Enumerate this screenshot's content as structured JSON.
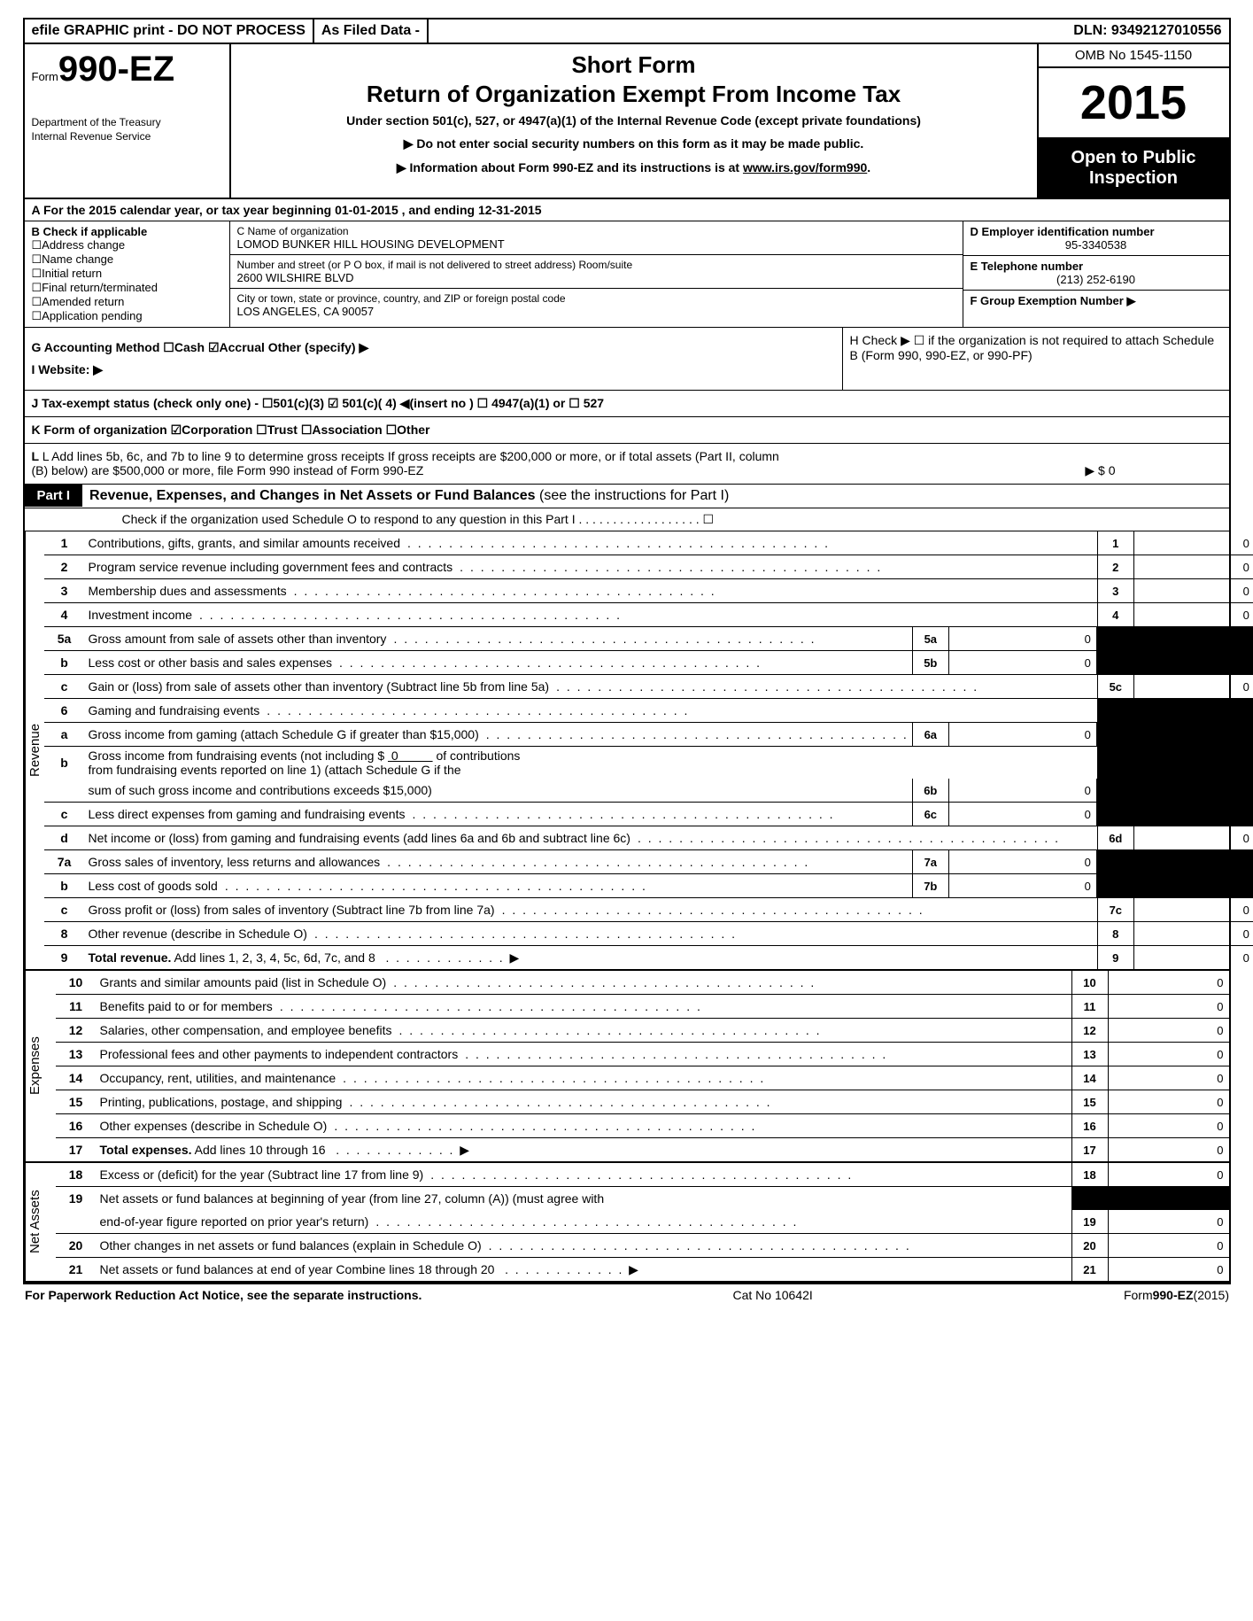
{
  "top": {
    "efile": "efile GRAPHIC print - DO NOT PROCESS",
    "asFiled": "As Filed Data -",
    "dln": "DLN: 93492127010556"
  },
  "header": {
    "formPrefix": "Form",
    "formNo": "990-EZ",
    "dept1": "Department of the Treasury",
    "dept2": "Internal Revenue Service",
    "title1": "Short Form",
    "title2": "Return of Organization Exempt From Income Tax",
    "sub": "Under section 501(c), 527, or 4947(a)(1) of the Internal Revenue Code (except private foundations)",
    "warn1": "▶ Do not enter social security numbers on this form as it may be made public.",
    "warn2": "▶ Information about Form 990-EZ and its instructions is at ",
    "irslink": "www.irs.gov/form990",
    "period": ".",
    "omb": "OMB No  1545-1150",
    "year": "2015",
    "open": "Open to Public Inspection"
  },
  "rowA": "A  For the 2015 calendar year, or tax year beginning 01-01-2015             , and ending 12-31-2015",
  "colB": {
    "hd": "B  Check if applicable",
    "items": [
      "Address change",
      "Name change",
      "Initial return",
      "Final return/terminated",
      "Amended return",
      "Application pending"
    ]
  },
  "colC": {
    "nameLbl": "C Name of organization",
    "name": "LOMOD BUNKER HILL HOUSING DEVELOPMENT",
    "addrLbl": "Number and street (or P  O  box, if mail is not delivered to street address) Room/suite",
    "addr": "2600 WILSHIRE BLVD",
    "cityLbl": "City or town, state or province, country, and ZIP or foreign postal code",
    "city": "LOS ANGELES, CA  90057"
  },
  "colDE": {
    "dLbl": "D Employer identification number",
    "ein": "95-3340538",
    "eLbl": "E Telephone number",
    "phone": "(213) 252-6190",
    "fLbl": "F Group Exemption Number  ▶"
  },
  "rowG": "G Accounting Method   ☐Cash  ☑Accrual   Other (specify) ▶",
  "rowI": "I Website: ▶",
  "rowH": "H   Check ▶ ☐ if the organization is not required to attach Schedule B (Form 990, 990-EZ, or 990-PF)",
  "rowJ": "J Tax-exempt status (check only one) - ☐501(c)(3) ☑ 501(c)( 4) ◀(insert no ) ☐ 4947(a)(1) or ☐ 527",
  "rowK": "K Form of organization   ☑Corporation  ☐Trust  ☐Association  ☐Other",
  "rowL1": "L Add lines 5b, 6c, and 7b to line 9 to determine gross receipts  If gross receipts are $200,000 or more, or if total assets (Part II, column",
  "rowL2": "(B) below) are $500,000 or more, file Form 990 instead of Form 990-EZ",
  "rowL3": "▶ $ 0",
  "part1": {
    "tag": "Part I",
    "title": "Revenue, Expenses, and Changes in Net Assets or Fund Balances",
    "sub": " (see the instructions for Part I)",
    "check": "Check if the organization used Schedule O to respond to any question in this Part I  .  .  .  .  .  .  .  .  .  .  .  .  .  .  .  .  .  .  ☐"
  },
  "revenue": [
    {
      "no": "1",
      "desc": "Contributions, gifts, grants, and similar amounts received",
      "rno": "1",
      "rval": "0"
    },
    {
      "no": "2",
      "desc": "Program service revenue including government fees and contracts",
      "rno": "2",
      "rval": "0"
    },
    {
      "no": "3",
      "desc": "Membership dues and assessments",
      "rno": "3",
      "rval": "0"
    },
    {
      "no": "4",
      "desc": "Investment income",
      "rno": "4",
      "rval": "0"
    },
    {
      "no": "5a",
      "desc": "Gross amount from sale of assets other than inventory",
      "subno": "5a",
      "subval": "0",
      "shade": true
    },
    {
      "no": "b",
      "desc": "Less  cost or other basis and sales expenses",
      "subno": "5b",
      "subval": "0",
      "shade": true
    },
    {
      "no": "c",
      "desc": "Gain or (loss) from sale of assets other than inventory (Subtract line 5b from line 5a)",
      "rno": "5c",
      "rval": "0"
    },
    {
      "no": "6",
      "desc": "Gaming and fundraising events",
      "shade": true,
      "noval": true
    },
    {
      "no": "a",
      "desc": "Gross income from gaming (attach Schedule G if greater than $15,000)",
      "subno": "6a",
      "subval": "0",
      "shade": true
    },
    {
      "no": "b",
      "desc": "Gross income from fundraising events (not including $  0              of contributions from fundraising events reported on line 1) (attach Schedule G if the sum of such gross income and contributions exceeds $15,000)",
      "subno": "6b",
      "subval": "0",
      "shade": true,
      "wrap": true
    },
    {
      "no": "c",
      "desc": "Less  direct expenses from gaming and fundraising events",
      "subno": "6c",
      "subval": "0",
      "shade": true
    },
    {
      "no": "d",
      "desc": "Net income or (loss) from gaming and fundraising events (add lines 6a and 6b and subtract line 6c)",
      "rno": "6d",
      "rval": "0"
    },
    {
      "no": "7a",
      "desc": "Gross sales of inventory, less returns and allowances",
      "subno": "7a",
      "subval": "0",
      "shade": true
    },
    {
      "no": "b",
      "desc": "Less  cost of goods sold",
      "subno": "7b",
      "subval": "0",
      "shade": true
    },
    {
      "no": "c",
      "desc": "Gross profit or (loss) from sales of inventory (Subtract line 7b from line 7a)",
      "rno": "7c",
      "rval": "0"
    },
    {
      "no": "8",
      "desc": "Other revenue (describe in Schedule O)",
      "rno": "8",
      "rval": "0"
    },
    {
      "no": "9",
      "desc": "Total revenue. Add lines 1, 2, 3, 4, 5c, 6d, 7c, and 8",
      "rno": "9",
      "rval": "0",
      "bold": true,
      "arrow": true
    }
  ],
  "expenses": [
    {
      "no": "10",
      "desc": "Grants and similar amounts paid (list in Schedule O)",
      "rno": "10",
      "rval": "0"
    },
    {
      "no": "11",
      "desc": "Benefits paid to or for members",
      "rno": "11",
      "rval": "0"
    },
    {
      "no": "12",
      "desc": "Salaries, other compensation, and employee benefits",
      "rno": "12",
      "rval": "0"
    },
    {
      "no": "13",
      "desc": "Professional fees and other payments to independent contractors",
      "rno": "13",
      "rval": "0"
    },
    {
      "no": "14",
      "desc": "Occupancy, rent, utilities, and maintenance",
      "rno": "14",
      "rval": "0"
    },
    {
      "no": "15",
      "desc": "Printing, publications, postage, and shipping",
      "rno": "15",
      "rval": "0"
    },
    {
      "no": "16",
      "desc": "Other expenses (describe in Schedule O)",
      "rno": "16",
      "rval": "0"
    },
    {
      "no": "17",
      "desc": "Total expenses. Add lines 10 through 16",
      "rno": "17",
      "rval": "0",
      "bold": true,
      "arrow": true
    }
  ],
  "netassets": [
    {
      "no": "18",
      "desc": "Excess or (deficit) for the year (Subtract line 17 from line 9)",
      "rno": "18",
      "rval": "0"
    },
    {
      "no": "19",
      "desc": "Net assets or fund balances at beginning of year (from line 27, column (A)) (must agree with end-of-year figure reported on prior year's return)",
      "rno": "19",
      "rval": "0",
      "wrap": true,
      "shadeTop": true
    },
    {
      "no": "20",
      "desc": "Other changes in net assets or fund balances (explain in Schedule O)",
      "rno": "20",
      "rval": "0"
    },
    {
      "no": "21",
      "desc": "Net assets or fund balances at end of year  Combine lines 18 through 20",
      "rno": "21",
      "rval": "0",
      "arrow": true
    }
  ],
  "footer": {
    "l": "For Paperwork Reduction Act Notice, see the separate instructions.",
    "c": "Cat No  10642I",
    "r": "Form 990-EZ (2015)"
  },
  "labels": {
    "revenue": "Revenue",
    "expenses": "Expenses",
    "netassets": "Net Assets"
  }
}
